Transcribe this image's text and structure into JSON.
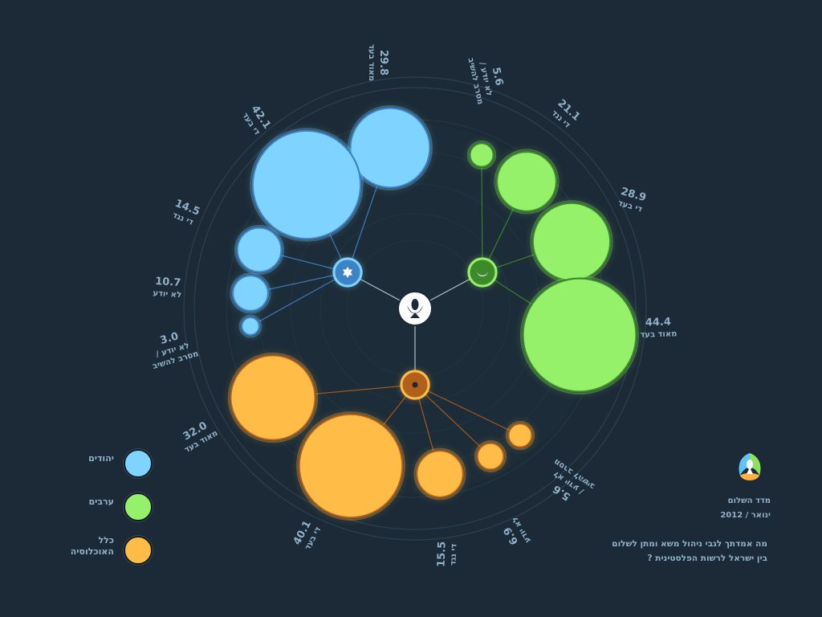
{
  "chart_data": {
    "type": "bubble-radial",
    "groups": [
      {
        "name": "יהודים",
        "color": "#7fd3ff",
        "stroke": "#3d84c7",
        "icon": "star-of-david-icon",
        "points": [
          {
            "value": 29.8,
            "label": "מאוד בעד"
          },
          {
            "value": 42.1,
            "label": "די בעד"
          },
          {
            "value": 14.5,
            "label": "די נגד"
          },
          {
            "value": 10.7,
            "label": "לא יודע"
          },
          {
            "value": 3.0,
            "label": "לא יודע / מסרב להשיב"
          }
        ]
      },
      {
        "name": "ערבים",
        "color": "#95f06a",
        "stroke": "#3d8a2a",
        "icon": "crescent-icon",
        "points": [
          {
            "value": 5.6,
            "label": "לא יודע / מסרב להשיב"
          },
          {
            "value": 21.1,
            "label": "די נגד"
          },
          {
            "value": 28.9,
            "label": "די בעד"
          },
          {
            "value": 44.4,
            "label": "מאוד בעד"
          }
        ]
      },
      {
        "name": "כלל האוכלוסיה",
        "color": "#ffbc47",
        "stroke": "#b0601a",
        "icon": "circle-dot-icon",
        "points": [
          {
            "value": 32.0,
            "label": "מאוד בעד"
          },
          {
            "value": 40.1,
            "label": "די בעד"
          },
          {
            "value": 15.5,
            "label": "די נגד"
          },
          {
            "value": 6.9,
            "label": "לא יודע"
          },
          {
            "value": 5.6,
            "label": "לא יודע / מסרב להשיב"
          }
        ]
      }
    ]
  },
  "legend": [
    {
      "label": "יהודים",
      "color": "#7fd3ff"
    },
    {
      "label": "ערבים",
      "color": "#95f06a"
    },
    {
      "label": "כלל האוכלוסיה",
      "color": "#ffbc47"
    }
  ],
  "brand": {
    "name": "מדד השלום",
    "date": "ינואר / 2012",
    "logo": "peace-index-logo-icon"
  },
  "question": {
    "line1": "מה אמדתך לגבי ניהול משא ומתן לשלום",
    "line2": "בין ישראל לרשות הפלסטינית ?"
  },
  "colors": {
    "background": "#1b2a36",
    "label": "#8fb0c8",
    "ring": "#2f4354"
  }
}
